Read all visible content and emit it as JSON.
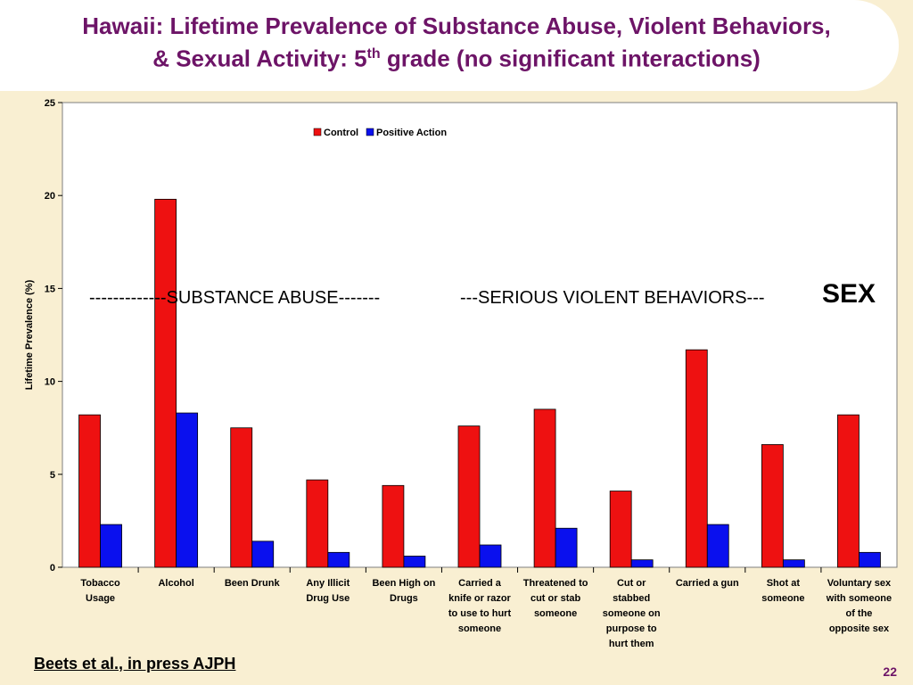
{
  "slide": {
    "title_line1": "Hawaii: Lifetime Prevalence of Substance Abuse, Violent Behaviors,",
    "title_line2_pre": "& Sexual Activity: 5",
    "title_line2_sup": "th",
    "title_line2_post": " grade (no significant interactions)",
    "citation": "Beets et al., in press AJPH",
    "page_number": "22",
    "annotations": {
      "substance": "-------------SUBSTANCE ABUSE-------",
      "violent": "---SERIOUS VIOLENT BEHAVIORS---",
      "sex": "SEX"
    }
  },
  "colors": {
    "control": "#ee1111",
    "positive_action": "#0a10ee",
    "title": "#6d1467",
    "background": "#f9efd2"
  },
  "chart_data": {
    "type": "bar",
    "ylabel": "Lifetime Prevalence (%)",
    "ylim": [
      0,
      25
    ],
    "yticks": [
      0,
      5,
      10,
      15,
      20,
      25
    ],
    "grid": false,
    "legend_position": "top-center",
    "categories": [
      [
        "Tobacco",
        "Usage"
      ],
      [
        "Alcohol"
      ],
      [
        "Been Drunk"
      ],
      [
        "Any Illicit",
        "Drug Use"
      ],
      [
        "Been High on",
        "Drugs"
      ],
      [
        "Carried a",
        "knife or razor",
        "to use to hurt",
        "someone"
      ],
      [
        "Threatened to",
        "cut or stab",
        "someone"
      ],
      [
        "Cut or",
        "stabbed",
        "someone on",
        "purpose to",
        "hurt them"
      ],
      [
        "Carried a gun"
      ],
      [
        "Shot at",
        "someone"
      ],
      [
        "Voluntary sex",
        "with someone",
        "of the",
        "opposite sex"
      ]
    ],
    "series": [
      {
        "name": "Control",
        "values": [
          8.2,
          19.8,
          7.5,
          4.7,
          4.4,
          7.6,
          8.5,
          4.1,
          11.7,
          6.6,
          8.2
        ]
      },
      {
        "name": "Positive Action",
        "values": [
          2.3,
          8.3,
          1.4,
          0.8,
          0.6,
          1.2,
          2.1,
          0.4,
          2.3,
          0.4,
          0.8
        ]
      }
    ]
  }
}
